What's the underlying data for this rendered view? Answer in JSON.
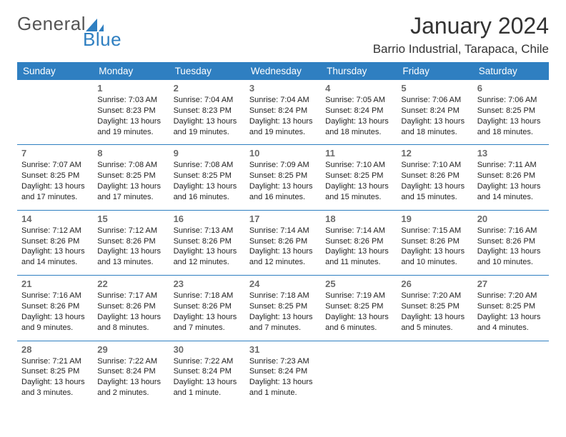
{
  "logo": {
    "line1": "General",
    "line2": "Blue",
    "icon_color": "#2f7fc1"
  },
  "title": {
    "month": "January 2024",
    "location": "Barrio Industrial, Tarapaca, Chile"
  },
  "colors": {
    "header_bg": "#2f7fc1",
    "header_text": "#ffffff",
    "daynum": "#6b6b6b",
    "line": "#2f7fc1",
    "body_text": "#222222"
  },
  "day_headers": [
    "Sunday",
    "Monday",
    "Tuesday",
    "Wednesday",
    "Thursday",
    "Friday",
    "Saturday"
  ],
  "weeks": [
    [
      null,
      {
        "n": "1",
        "sr": "7:03 AM",
        "ss": "8:23 PM",
        "dl": "13 hours and 19 minutes."
      },
      {
        "n": "2",
        "sr": "7:04 AM",
        "ss": "8:23 PM",
        "dl": "13 hours and 19 minutes."
      },
      {
        "n": "3",
        "sr": "7:04 AM",
        "ss": "8:24 PM",
        "dl": "13 hours and 19 minutes."
      },
      {
        "n": "4",
        "sr": "7:05 AM",
        "ss": "8:24 PM",
        "dl": "13 hours and 18 minutes."
      },
      {
        "n": "5",
        "sr": "7:06 AM",
        "ss": "8:24 PM",
        "dl": "13 hours and 18 minutes."
      },
      {
        "n": "6",
        "sr": "7:06 AM",
        "ss": "8:25 PM",
        "dl": "13 hours and 18 minutes."
      }
    ],
    [
      {
        "n": "7",
        "sr": "7:07 AM",
        "ss": "8:25 PM",
        "dl": "13 hours and 17 minutes."
      },
      {
        "n": "8",
        "sr": "7:08 AM",
        "ss": "8:25 PM",
        "dl": "13 hours and 17 minutes."
      },
      {
        "n": "9",
        "sr": "7:08 AM",
        "ss": "8:25 PM",
        "dl": "13 hours and 16 minutes."
      },
      {
        "n": "10",
        "sr": "7:09 AM",
        "ss": "8:25 PM",
        "dl": "13 hours and 16 minutes."
      },
      {
        "n": "11",
        "sr": "7:10 AM",
        "ss": "8:25 PM",
        "dl": "13 hours and 15 minutes."
      },
      {
        "n": "12",
        "sr": "7:10 AM",
        "ss": "8:26 PM",
        "dl": "13 hours and 15 minutes."
      },
      {
        "n": "13",
        "sr": "7:11 AM",
        "ss": "8:26 PM",
        "dl": "13 hours and 14 minutes."
      }
    ],
    [
      {
        "n": "14",
        "sr": "7:12 AM",
        "ss": "8:26 PM",
        "dl": "13 hours and 14 minutes."
      },
      {
        "n": "15",
        "sr": "7:12 AM",
        "ss": "8:26 PM",
        "dl": "13 hours and 13 minutes."
      },
      {
        "n": "16",
        "sr": "7:13 AM",
        "ss": "8:26 PM",
        "dl": "13 hours and 12 minutes."
      },
      {
        "n": "17",
        "sr": "7:14 AM",
        "ss": "8:26 PM",
        "dl": "13 hours and 12 minutes."
      },
      {
        "n": "18",
        "sr": "7:14 AM",
        "ss": "8:26 PM",
        "dl": "13 hours and 11 minutes."
      },
      {
        "n": "19",
        "sr": "7:15 AM",
        "ss": "8:26 PM",
        "dl": "13 hours and 10 minutes."
      },
      {
        "n": "20",
        "sr": "7:16 AM",
        "ss": "8:26 PM",
        "dl": "13 hours and 10 minutes."
      }
    ],
    [
      {
        "n": "21",
        "sr": "7:16 AM",
        "ss": "8:26 PM",
        "dl": "13 hours and 9 minutes."
      },
      {
        "n": "22",
        "sr": "7:17 AM",
        "ss": "8:26 PM",
        "dl": "13 hours and 8 minutes."
      },
      {
        "n": "23",
        "sr": "7:18 AM",
        "ss": "8:26 PM",
        "dl": "13 hours and 7 minutes."
      },
      {
        "n": "24",
        "sr": "7:18 AM",
        "ss": "8:25 PM",
        "dl": "13 hours and 7 minutes."
      },
      {
        "n": "25",
        "sr": "7:19 AM",
        "ss": "8:25 PM",
        "dl": "13 hours and 6 minutes."
      },
      {
        "n": "26",
        "sr": "7:20 AM",
        "ss": "8:25 PM",
        "dl": "13 hours and 5 minutes."
      },
      {
        "n": "27",
        "sr": "7:20 AM",
        "ss": "8:25 PM",
        "dl": "13 hours and 4 minutes."
      }
    ],
    [
      {
        "n": "28",
        "sr": "7:21 AM",
        "ss": "8:25 PM",
        "dl": "13 hours and 3 minutes."
      },
      {
        "n": "29",
        "sr": "7:22 AM",
        "ss": "8:24 PM",
        "dl": "13 hours and 2 minutes."
      },
      {
        "n": "30",
        "sr": "7:22 AM",
        "ss": "8:24 PM",
        "dl": "13 hours and 1 minute."
      },
      {
        "n": "31",
        "sr": "7:23 AM",
        "ss": "8:24 PM",
        "dl": "13 hours and 1 minute."
      },
      null,
      null,
      null
    ]
  ],
  "labels": {
    "sunrise": "Sunrise:",
    "sunset": "Sunset:",
    "daylight": "Daylight:"
  }
}
